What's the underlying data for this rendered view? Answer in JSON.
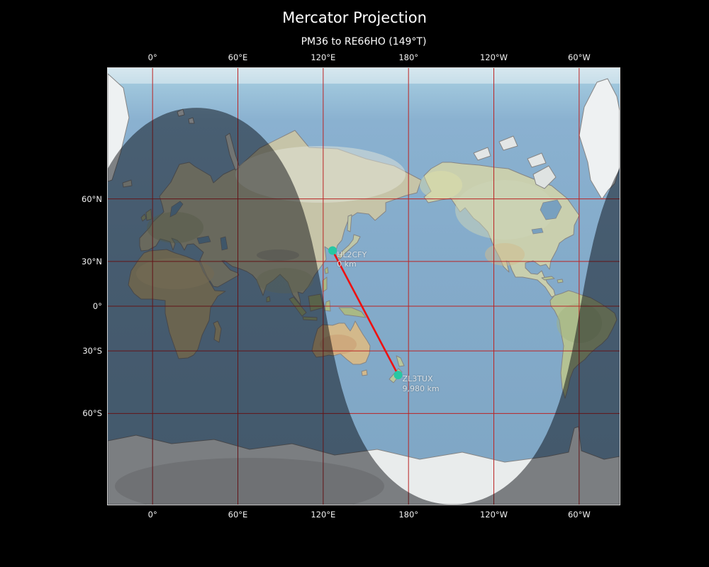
{
  "title": "Mercator Projection",
  "subtitle": "PM36 to RE66HO (149°T)",
  "axes": {
    "top": [
      {
        "label": "0°",
        "lon": 0
      },
      {
        "label": "60°E",
        "lon": 60
      },
      {
        "label": "120°E",
        "lon": 120
      },
      {
        "label": "180°",
        "lon": 180
      },
      {
        "label": "120°W",
        "lon": 240
      },
      {
        "label": "60°W",
        "lon": 300
      }
    ],
    "bottom": [
      {
        "label": "0°",
        "lon": 0
      },
      {
        "label": "60°E",
        "lon": 60
      },
      {
        "label": "120°E",
        "lon": 120
      },
      {
        "label": "180°",
        "lon": 180
      },
      {
        "label": "120°W",
        "lon": 240
      },
      {
        "label": "60°W",
        "lon": 300
      }
    ],
    "left": [
      {
        "label": "60°N",
        "lat": 60
      },
      {
        "label": "30°N",
        "lat": 30
      },
      {
        "label": "0°",
        "lat": 0
      },
      {
        "label": "30°S",
        "lat": -30
      },
      {
        "label": "60°S",
        "lat": -60
      }
    ]
  },
  "chart_data": {
    "type": "map-route",
    "projection": "Mercator",
    "title": "Mercator Projection",
    "route_label": "PM36 to RE66HO (149°T)",
    "route": {
      "from_grid": "PM36",
      "to_grid": "RE66HO",
      "bearing_deg_true": 149
    },
    "points": [
      {
        "callsign": "HL2CFY",
        "grid": "PM36",
        "distance_label": "0 km",
        "lat": 36.4,
        "lon": 126.6
      },
      {
        "callsign": "ZL3TUX",
        "grid": "RE66HO",
        "distance_label": "9,980 km",
        "lat": -43.5,
        "lon": 172.7
      }
    ],
    "gridline_lons": [
      0,
      60,
      120,
      180,
      240,
      300
    ],
    "gridline_lats": [
      60,
      30,
      0,
      -30,
      -60
    ],
    "night_shade": {
      "subsolar_lat": 10,
      "subsolar_lon": -149
    },
    "colors": {
      "route": "#ee1111",
      "marker": "#27c7a3",
      "grid": "#bb2424",
      "night": "rgba(0,2,8,0.47)",
      "ocean": "#84abca",
      "background": "#000000"
    }
  }
}
